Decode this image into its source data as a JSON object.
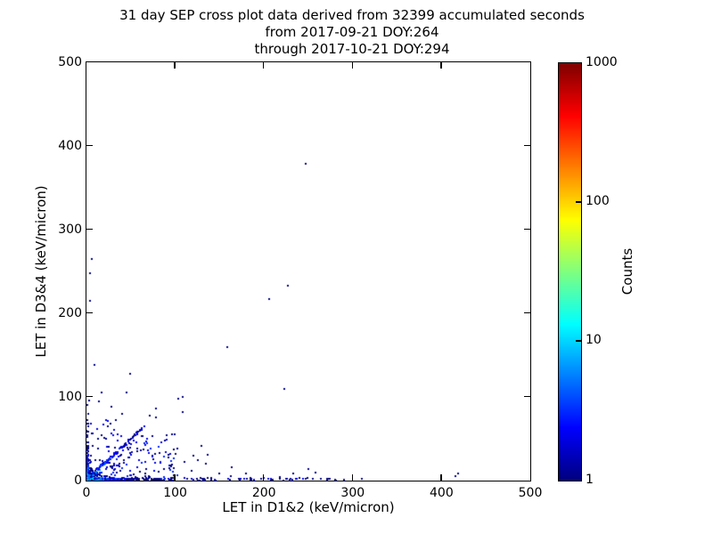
{
  "chart_data": {
    "type": "scatter",
    "title_lines": [
      "31 day SEP cross plot data derived from 32399 accumulated seconds",
      "from 2017-09-21 DOY:264",
      "through 2017-10-21 DOY:294"
    ],
    "meta": {
      "span_days": 31,
      "accumulated_seconds": 32399,
      "start_date": "2017-09-21",
      "start_doy": 264,
      "end_date": "2017-10-21",
      "end_doy": 294
    },
    "xlabel": "LET in D1&2 (keV/micron)",
    "ylabel": "LET in D3&4 (keV/micron)",
    "xlim": [
      0,
      500
    ],
    "ylim": [
      0,
      500
    ],
    "xticks": [
      0,
      100,
      200,
      300,
      400,
      500
    ],
    "yticks": [
      0,
      100,
      200,
      300,
      400,
      500
    ],
    "grid": false,
    "background": "#ffffff",
    "colorbar": {
      "label": "Counts",
      "scale": "log",
      "vmin": 1,
      "vmax": 1000,
      "ticks": [
        1,
        10,
        100,
        1000
      ],
      "colormap": "jet",
      "tick_colors": {
        "1": "#000080",
        "10": "#00d4ff",
        "100": "#ffd400",
        "1000": "#800000"
      }
    },
    "marker_px": 2,
    "seed": 20170921,
    "outlier_points": [
      [
        247,
        379,
        1
      ],
      [
        227,
        233,
        1
      ],
      [
        206,
        217,
        1
      ],
      [
        159,
        160,
        1
      ],
      [
        223,
        110,
        1
      ],
      [
        6,
        265,
        1
      ],
      [
        4,
        248,
        1
      ],
      [
        4,
        215,
        1
      ],
      [
        9,
        138,
        1
      ],
      [
        49,
        128,
        1
      ],
      [
        17,
        105,
        1
      ],
      [
        45,
        105,
        1
      ],
      [
        108,
        100,
        1
      ],
      [
        103,
        98,
        1
      ],
      [
        78,
        86,
        1
      ],
      [
        108,
        82,
        1
      ],
      [
        71,
        78,
        1
      ],
      [
        78,
        76,
        1
      ],
      [
        24,
        65,
        1
      ],
      [
        65,
        65,
        2
      ],
      [
        62,
        62,
        2
      ],
      [
        57,
        57,
        2
      ],
      [
        33,
        72,
        1
      ],
      [
        40,
        80,
        1
      ],
      [
        28,
        88,
        1
      ],
      [
        14,
        95,
        1
      ],
      [
        1,
        72,
        1
      ],
      [
        2,
        80,
        1
      ],
      [
        1,
        90,
        1
      ],
      [
        3,
        96,
        1
      ],
      [
        96,
        55,
        1
      ],
      [
        88,
        48,
        1
      ],
      [
        102,
        38,
        1
      ],
      [
        92,
        28,
        1
      ],
      [
        110,
        22,
        1
      ],
      [
        98,
        15,
        1
      ],
      [
        130,
        42,
        1
      ],
      [
        137,
        31,
        1
      ],
      [
        125,
        24,
        1
      ],
      [
        120,
        30,
        1
      ],
      [
        135,
        20,
        1
      ],
      [
        118,
        12,
        1
      ],
      [
        150,
        8,
        1
      ],
      [
        164,
        16,
        1
      ],
      [
        163,
        5,
        1
      ],
      [
        172,
        2,
        1
      ],
      [
        180,
        9,
        1
      ],
      [
        185,
        3,
        1
      ],
      [
        197,
        2,
        1
      ],
      [
        208,
        1,
        1
      ],
      [
        218,
        4,
        1
      ],
      [
        226,
        2,
        1
      ],
      [
        233,
        8,
        1
      ],
      [
        240,
        3,
        1
      ],
      [
        247,
        2,
        1
      ],
      [
        250,
        14,
        1
      ],
      [
        258,
        10,
        1
      ],
      [
        264,
        2,
        1
      ],
      [
        274,
        2,
        1
      ],
      [
        290,
        1,
        1
      ],
      [
        310,
        2,
        1
      ],
      [
        416,
        5,
        1
      ],
      [
        419,
        8,
        1
      ]
    ],
    "density_regions": [
      {
        "name": "origin-core",
        "mode": "expcorner",
        "n": 260,
        "sx": 5,
        "sy": 5,
        "xmax": 60,
        "ymax": 60,
        "cmax": 35,
        "cfall": 3.5
      },
      {
        "name": "bottom-band",
        "mode": "band-x",
        "n": 300,
        "xmax": 95,
        "xdecay": 30,
        "ymax": 3,
        "cmax": 12,
        "cfall": 25
      },
      {
        "name": "bottom-sparse",
        "mode": "uniform",
        "n": 55,
        "x": [
          80,
          285
        ],
        "y": [
          0,
          3
        ],
        "c": [
          1,
          2
        ]
      },
      {
        "name": "left-band",
        "mode": "band-y",
        "n": 110,
        "ymax": 68,
        "ydecay": 22,
        "xmax": 2.5,
        "cmax": 8,
        "cfall": 20
      },
      {
        "name": "diagonal-streak",
        "mode": "diag",
        "n": 85,
        "t": [
          2,
          64
        ],
        "jitter": 1.5,
        "c": [
          1,
          6
        ]
      },
      {
        "name": "lower-wedge",
        "mode": "wedge",
        "n": 140,
        "x": [
          3,
          105
        ],
        "slope": 0.7,
        "yint": 12,
        "ymax": 55,
        "c": [
          1,
          3
        ]
      },
      {
        "name": "left-halo",
        "mode": "uniform",
        "n": 45,
        "x": [
          0,
          60
        ],
        "y": [
          20,
          75
        ],
        "c": [
          1,
          2
        ]
      }
    ]
  }
}
